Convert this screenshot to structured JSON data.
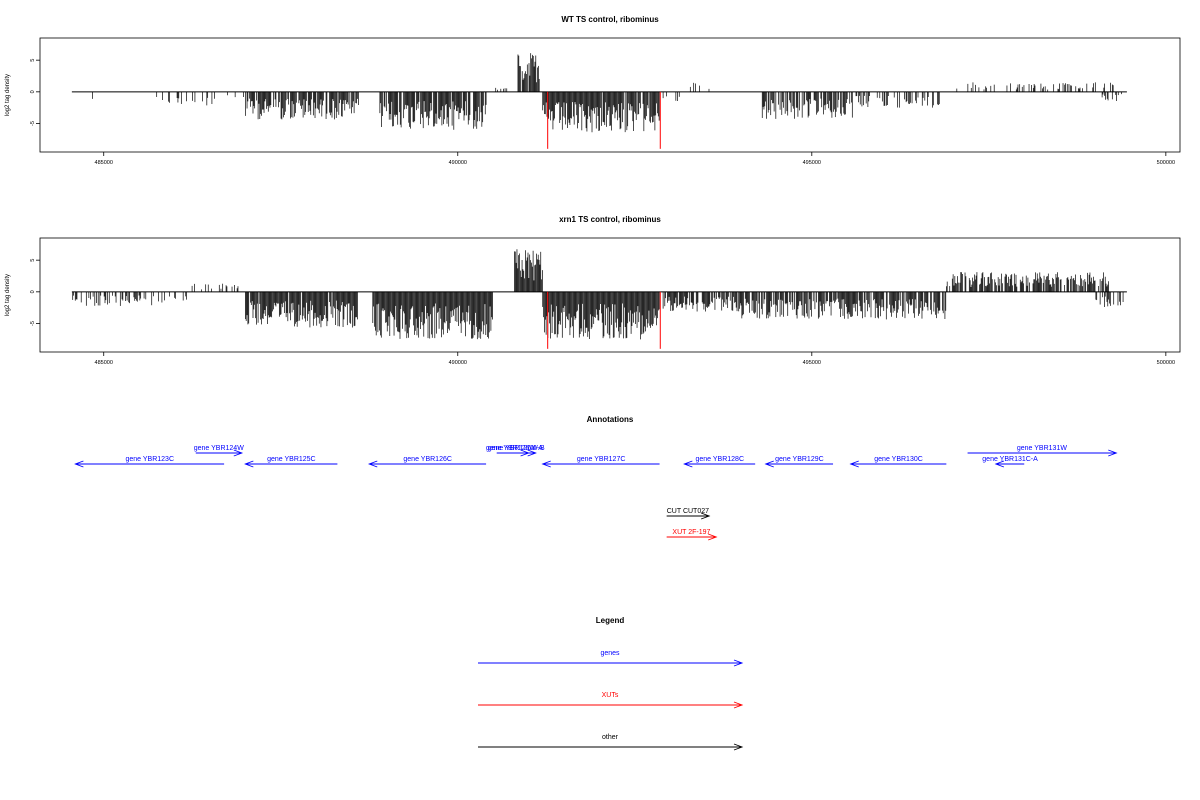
{
  "colors": {
    "gene": "#0000ff",
    "xut": "#ff0000",
    "other": "#000000",
    "axis": "#000000",
    "marker": "#ff0000"
  },
  "chart_data": [
    {
      "type": "bar",
      "title": "WT TS control, ribominus",
      "ylabel": "log2 tag density",
      "xlim": [
        484100,
        500200
      ],
      "ylim": [
        -9.5,
        8.5
      ],
      "x_ticks": [
        485000,
        490000,
        495000,
        500000
      ],
      "y_ticks": [
        -5,
        0,
        5
      ],
      "x_tick_labels": [
        "485000",
        "490000",
        "495000",
        "500000"
      ],
      "y_tick_labels": [
        "-5",
        "0",
        "5"
      ],
      "baseline_range": [
        484550,
        499450
      ],
      "red_markers_x": [
        491270,
        492860
      ],
      "red_markers_y": -9,
      "segments": [
        {
          "from": 484600,
          "to": 484900,
          "y": -1.5,
          "density": 0.15
        },
        {
          "from": 485700,
          "to": 486600,
          "y": -1.8,
          "density": 0.25
        },
        {
          "from": 486700,
          "to": 487000,
          "y": -1.0,
          "density": 0.2
        },
        {
          "from": 487000,
          "to": 488600,
          "y": -3.5,
          "density": 0.8
        },
        {
          "from": 488900,
          "to": 490400,
          "y": -4.8,
          "density": 0.9
        },
        {
          "from": 490500,
          "to": 490800,
          "y": 0.6,
          "density": 0.3
        },
        {
          "from": 490850,
          "to": 491150,
          "y": 5.0,
          "density": 0.9
        },
        {
          "from": 491200,
          "to": 492850,
          "y": -5.2,
          "density": 0.95
        },
        {
          "from": 492900,
          "to": 493200,
          "y": -1.2,
          "density": 0.3
        },
        {
          "from": 493200,
          "to": 493600,
          "y": 1.2,
          "density": 0.15
        },
        {
          "from": 494300,
          "to": 495600,
          "y": -3.5,
          "density": 0.7
        },
        {
          "from": 495600,
          "to": 496900,
          "y": -2.0,
          "density": 0.35
        },
        {
          "from": 497000,
          "to": 499300,
          "y": 1.2,
          "density": 0.3
        },
        {
          "from": 499100,
          "to": 499400,
          "y": -1.2,
          "density": 0.3
        }
      ]
    },
    {
      "type": "bar",
      "title": "xrn1 TS control, ribominus",
      "ylabel": "log2 tag density",
      "xlim": [
        484100,
        500200
      ],
      "ylim": [
        -9.5,
        8.5
      ],
      "x_ticks": [
        485000,
        490000,
        495000,
        500000
      ],
      "y_ticks": [
        -5,
        0,
        5
      ],
      "x_tick_labels": [
        "485000",
        "490000",
        "495000",
        "500000"
      ],
      "y_tick_labels": [
        "-5",
        "0",
        "5"
      ],
      "baseline_range": [
        484550,
        499450
      ],
      "red_markers_x": [
        491270,
        492860
      ],
      "red_markers_y": -9,
      "segments": [
        {
          "from": 484550,
          "to": 486200,
          "y": -1.8,
          "density": 0.45
        },
        {
          "from": 486200,
          "to": 486900,
          "y": 1.2,
          "density": 0.25
        },
        {
          "from": 487000,
          "to": 488600,
          "y": -4.5,
          "density": 0.95
        },
        {
          "from": 488800,
          "to": 490500,
          "y": -6.0,
          "density": 1.0
        },
        {
          "from": 490800,
          "to": 491200,
          "y": 5.5,
          "density": 1.0
        },
        {
          "from": 491200,
          "to": 492850,
          "y": -6.0,
          "density": 1.0
        },
        {
          "from": 492900,
          "to": 494000,
          "y": -2.5,
          "density": 0.7
        },
        {
          "from": 494000,
          "to": 496900,
          "y": -3.5,
          "density": 0.8
        },
        {
          "from": 496900,
          "to": 499200,
          "y": 2.5,
          "density": 0.8
        },
        {
          "from": 499000,
          "to": 499400,
          "y": -2.0,
          "density": 0.5
        }
      ]
    }
  ],
  "annotations": {
    "title": "Annotations",
    "genes": [
      {
        "label": "gene YBR123C",
        "from": 486700,
        "to": 484600,
        "row": 1
      },
      {
        "label": "gene YBR124W",
        "from": 486300,
        "to": 486950,
        "row": 0
      },
      {
        "label": "gene YBR125C",
        "from": 488300,
        "to": 487000,
        "row": 1
      },
      {
        "label": "gene YBR126C",
        "from": 490400,
        "to": 488750,
        "row": 1
      },
      {
        "label": "gene YBR126W-B",
        "from": 490550,
        "to": 491100,
        "row": 0
      },
      {
        "label": "gene YBR126W-A",
        "from": 490600,
        "to": 491000,
        "row": 0
      },
      {
        "label": "gene YBR127C",
        "from": 492850,
        "to": 491200,
        "row": 1
      },
      {
        "label": "gene YBR128C",
        "from": 494200,
        "to": 493200,
        "row": 1
      },
      {
        "label": "gene YBR129C",
        "from": 495300,
        "to": 494350,
        "row": 1
      },
      {
        "label": "gene YBR130C",
        "from": 496900,
        "to": 495550,
        "row": 1
      },
      {
        "label": "gene YBR131W",
        "from": 497200,
        "to": 499300,
        "row": 0
      },
      {
        "label": "gene YBR131C-A",
        "from": 498000,
        "to": 497600,
        "row": 1
      }
    ],
    "others": [
      {
        "label": "CUT CUT027",
        "from": 492950,
        "to": 493550
      }
    ],
    "xuts": [
      {
        "label": "XUT 2F-197",
        "from": 492950,
        "to": 493650
      }
    ]
  },
  "legend": {
    "title": "Legend",
    "items": [
      {
        "label": "genes",
        "kind": "gene"
      },
      {
        "label": "XUTs",
        "kind": "xut"
      },
      {
        "label": "other",
        "kind": "other"
      }
    ]
  }
}
